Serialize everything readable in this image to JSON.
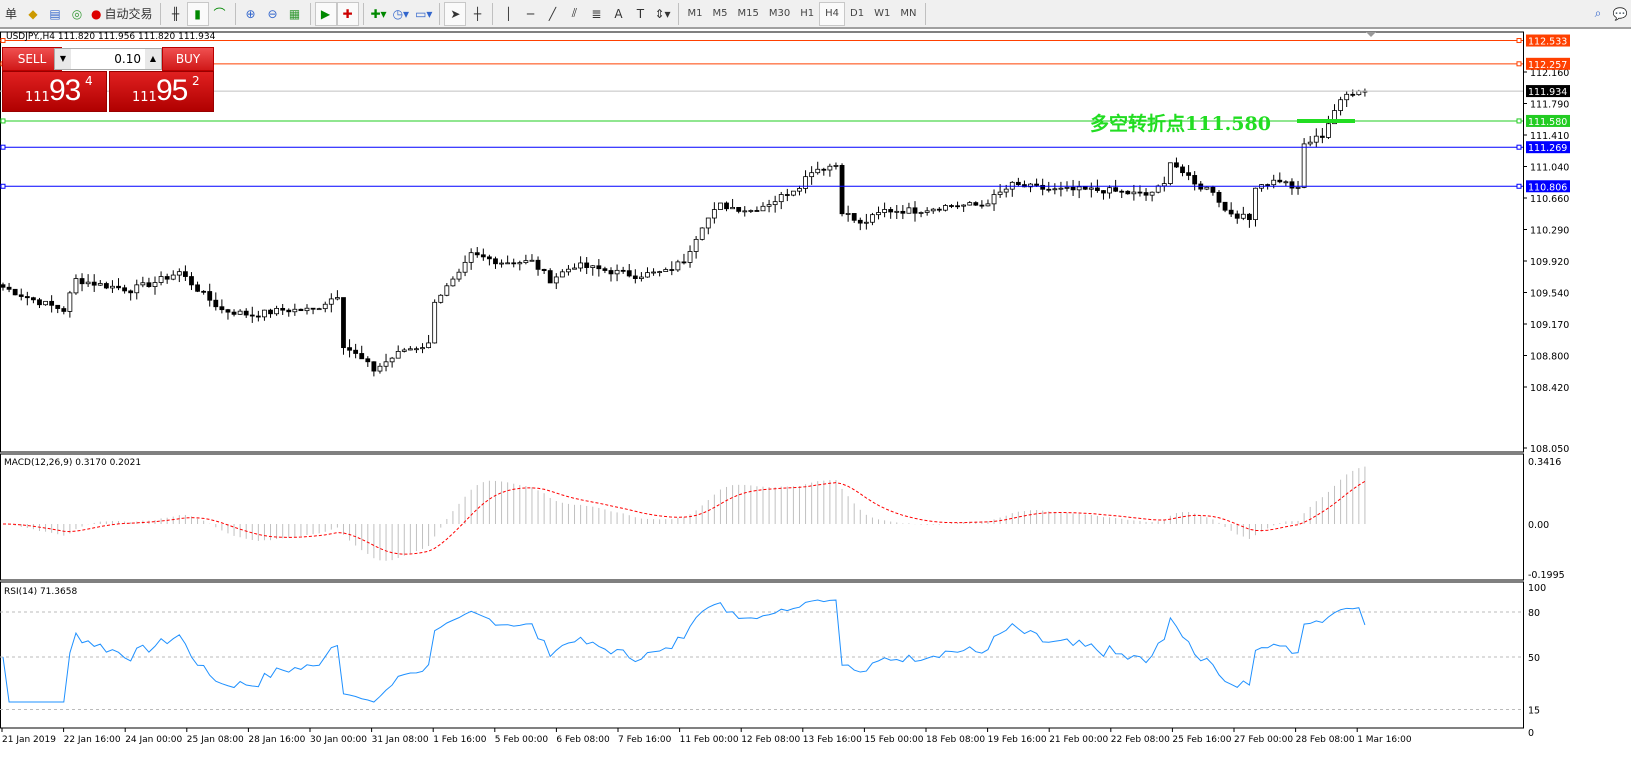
{
  "toolbar": {
    "left_clip": "单",
    "auto_trade": "自动交易",
    "timeframes": [
      "M1",
      "M5",
      "M15",
      "M30",
      "H1",
      "H4",
      "D1",
      "W1",
      "MN"
    ],
    "active_timeframe": "H4"
  },
  "chart": {
    "title": "USDJPY.,H4  111.820 111.956 111.820 111.934",
    "symbol": "USDJPY.",
    "timeframe": "H4",
    "ohlc": {
      "open": 111.82,
      "high": 111.956,
      "low": 111.82,
      "close": 111.934
    }
  },
  "trade_panel": {
    "sell_label": "SELL",
    "buy_label": "BUY",
    "lot": "0.10",
    "sell_price": {
      "big": "111",
      "main": "93",
      "pip": "4"
    },
    "buy_price": {
      "big": "111",
      "main": "95",
      "pip": "2"
    }
  },
  "annotation": {
    "text": "多空转折点111.580",
    "color": "#22dd22"
  },
  "price_axis": {
    "ticks": [
      "112.160",
      "111.790",
      "111.410",
      "111.040",
      "110.660",
      "110.290",
      "109.920",
      "109.540",
      "109.170",
      "108.800",
      "108.420",
      "108.050"
    ]
  },
  "hlines": [
    {
      "price": "112.533",
      "color": "#ff4000"
    },
    {
      "price": "112.257",
      "color": "#ff4000"
    },
    {
      "price": "111.934",
      "color": "#c0c0c0",
      "label_bg": "#000000"
    },
    {
      "price": "111.580",
      "color": "#22cc22"
    },
    {
      "price": "111.269",
      "color": "#0000ff"
    },
    {
      "price": "110.806",
      "color": "#0000ff"
    }
  ],
  "close_path": [
    [
      0,
      109.61
    ],
    [
      5,
      109.46
    ],
    [
      10,
      109.34
    ],
    [
      12,
      109.7
    ],
    [
      16,
      109.64
    ],
    [
      21,
      109.58
    ],
    [
      25,
      109.67
    ],
    [
      29,
      109.79
    ],
    [
      33,
      109.52
    ],
    [
      36,
      109.34
    ],
    [
      41,
      109.28
    ],
    [
      46,
      109.34
    ],
    [
      51,
      109.34
    ],
    [
      55,
      109.52
    ],
    [
      56,
      108.93
    ],
    [
      61,
      108.63
    ],
    [
      66,
      108.87
    ],
    [
      70,
      108.93
    ],
    [
      71,
      109.46
    ],
    [
      75,
      109.75
    ],
    [
      77,
      109.99
    ],
    [
      82,
      109.91
    ],
    [
      87,
      109.91
    ],
    [
      90,
      109.7
    ],
    [
      94,
      109.87
    ],
    [
      99,
      109.81
    ],
    [
      104,
      109.75
    ],
    [
      109,
      109.79
    ],
    [
      112,
      109.93
    ],
    [
      115,
      110.35
    ],
    [
      118,
      110.58
    ],
    [
      123,
      110.52
    ],
    [
      127,
      110.64
    ],
    [
      131,
      110.82
    ],
    [
      133,
      111.0
    ],
    [
      137,
      111.06
    ],
    [
      138,
      110.52
    ],
    [
      141,
      110.35
    ],
    [
      145,
      110.52
    ],
    [
      150,
      110.52
    ],
    [
      156,
      110.58
    ],
    [
      161,
      110.58
    ],
    [
      166,
      110.82
    ],
    [
      173,
      110.76
    ],
    [
      181,
      110.76
    ],
    [
      188,
      110.7
    ],
    [
      191,
      110.82
    ],
    [
      192,
      111.12
    ],
    [
      196,
      110.82
    ],
    [
      199,
      110.76
    ],
    [
      201,
      110.52
    ],
    [
      205,
      110.41
    ],
    [
      206,
      110.82
    ],
    [
      210,
      110.88
    ],
    [
      213,
      110.76
    ],
    [
      214,
      111.3
    ],
    [
      217,
      111.41
    ],
    [
      219,
      111.71
    ],
    [
      221,
      111.89
    ],
    [
      223,
      111.96
    ],
    [
      224,
      111.93
    ]
  ],
  "macd": {
    "label": "MACD(12,26,9) 0.3170 0.2021",
    "ticks": [
      "0.3416",
      "0.00",
      "-0.1995"
    ],
    "hist_color": "#c0c0c0",
    "signal_color": "#ff0000"
  },
  "rsi": {
    "label": "RSI(14) 71.3658",
    "ticks": [
      "100",
      "80",
      "50",
      "15",
      "0"
    ],
    "line_color": "#1e90ff"
  },
  "time_axis": [
    "21 Jan 2019",
    "22 Jan 16:00",
    "24 Jan 00:00",
    "25 Jan 08:00",
    "28 Jan 16:00",
    "30 Jan 00:00",
    "31 Jan 08:00",
    "1 Feb 16:00",
    "5 Feb 00:00",
    "6 Feb 08:00",
    "7 Feb 16:00",
    "11 Feb 00:00",
    "12 Feb 08:00",
    "13 Feb 16:00",
    "15 Feb 00:00",
    "18 Feb 08:00",
    "19 Feb 16:00",
    "21 Feb 00:00",
    "22 Feb 08:00",
    "25 Feb 16:00",
    "27 Feb 00:00",
    "28 Feb 08:00",
    "1 Mar 16:00"
  ]
}
